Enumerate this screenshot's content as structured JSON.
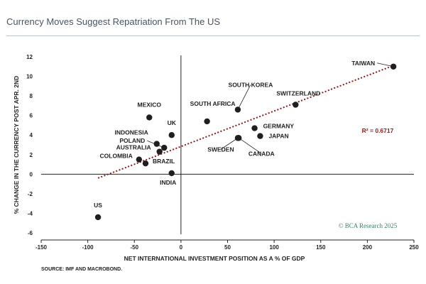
{
  "header": {
    "title": "Currency Moves Suggest Repatriation From The US"
  },
  "chart_data": {
    "type": "scatter",
    "title": "Currency Moves Suggest Repatriation From The US",
    "xlabel": "NET INTERNATIONAL INVESTMENT POSITION AS A % OF GDP",
    "ylabel": "% CHANGE IN THE CURRENCY POST APR. 2ND",
    "xlim": [
      -150,
      250
    ],
    "ylim": [
      -6,
      12
    ],
    "xticks": [
      "-150",
      "-100",
      "-50",
      "0",
      "50",
      "100",
      "150",
      "200",
      "250"
    ],
    "yticks": [
      "12",
      "10",
      "8",
      "6",
      "4",
      "2",
      "0",
      "-2",
      "-4",
      "-6"
    ],
    "points": [
      {
        "name": "TAIWAN",
        "x": 228,
        "y": 11.0
      },
      {
        "name": "SWITZERLAND",
        "x": 123,
        "y": 7.1
      },
      {
        "name": "SOUTH KOREA",
        "x": 61,
        "y": 6.6
      },
      {
        "name": "SOUTH AFRICA",
        "x": 28,
        "y": 5.4
      },
      {
        "name": "GERMANY",
        "x": 79,
        "y": 4.7
      },
      {
        "name": "JAPAN",
        "x": 85,
        "y": 3.9
      },
      {
        "name": "SWEDEN",
        "x": 61,
        "y": 3.7
      },
      {
        "name": "CANADA",
        "x": 62,
        "y": 3.7
      },
      {
        "name": "MEXICO",
        "x": -34,
        "y": 5.8
      },
      {
        "name": "UK",
        "x": -10,
        "y": 4.0
      },
      {
        "name": "INDONESIA",
        "x": -26,
        "y": 3.1
      },
      {
        "name": "POLAND",
        "x": -18,
        "y": 2.7
      },
      {
        "name": "AUSTRALIA",
        "x": -23,
        "y": 2.3
      },
      {
        "name": "COLOMBIA",
        "x": -45,
        "y": 1.5
      },
      {
        "name": "BRAZIL",
        "x": -38,
        "y": 1.1
      },
      {
        "name": "INDIA",
        "x": -10,
        "y": 0.1
      },
      {
        "name": "US",
        "x": -89,
        "y": -4.4
      }
    ],
    "trendline": {
      "x": [
        -89,
        228
      ],
      "y": [
        -0.4,
        11.1
      ],
      "style": "dotted",
      "color": "#8b1d1d"
    },
    "annotation": "R² = 0.6717",
    "watermark": "© BCA Research 2025",
    "source": "SOURCE: IMF AND MACROBOND."
  }
}
